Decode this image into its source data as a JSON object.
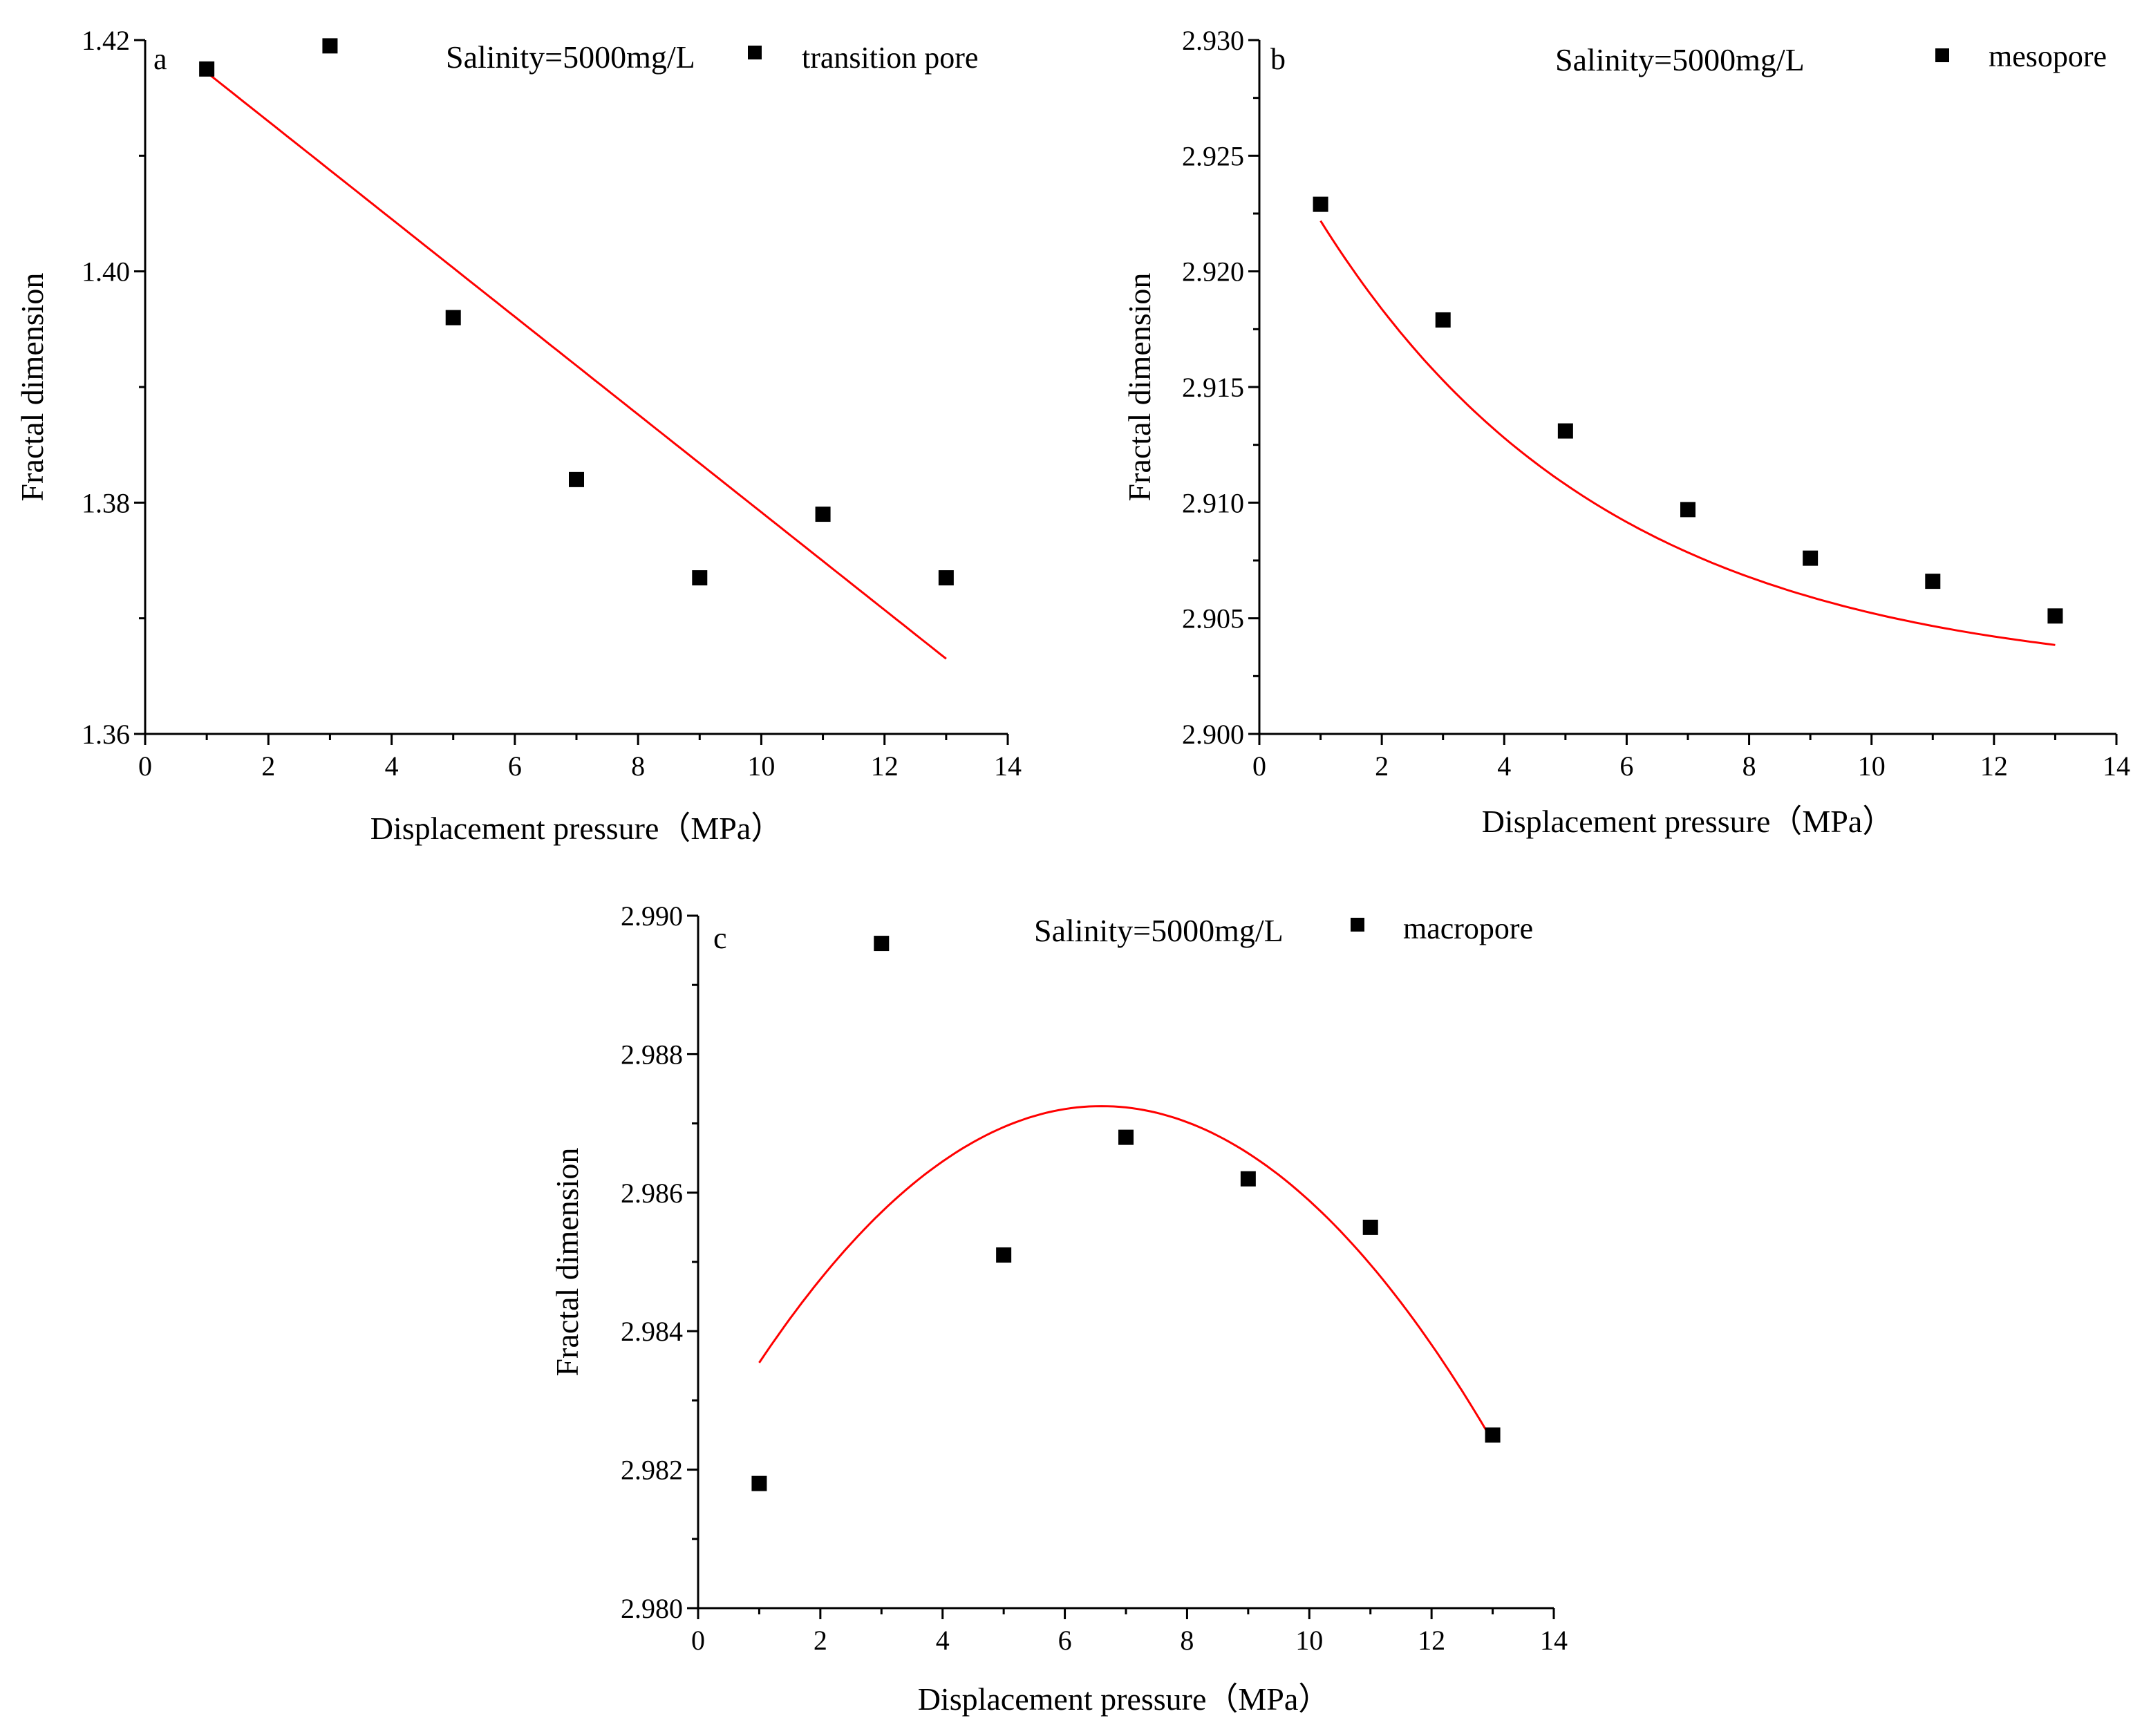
{
  "chart_data": [
    {
      "type": "scatter",
      "panel": "a",
      "salinity_label": "Salinity=5000mg/L",
      "legend_label": "transition pore",
      "xlabel": "Displacement pressure（MPa）",
      "ylabel": "Fractal dimension",
      "xlim": [
        0,
        14
      ],
      "ylim": [
        1.36,
        1.42
      ],
      "xticks": [
        0,
        2,
        4,
        6,
        8,
        10,
        12,
        14
      ],
      "xtick_labels": [
        "0",
        "2",
        "4",
        "6",
        "8",
        "10",
        "12",
        "14"
      ],
      "yticks": [
        1.36,
        1.38,
        1.4,
        1.42
      ],
      "ytick_labels": [
        "1.36",
        "1.38",
        "1.40",
        "1.42"
      ],
      "x": [
        1,
        3,
        5,
        7,
        9,
        11,
        13
      ],
      "y": [
        1.4175,
        1.4195,
        1.396,
        1.382,
        1.3735,
        1.379,
        1.3735
      ],
      "fit": {
        "kind": "linear",
        "x_range": [
          1,
          13
        ],
        "y_start": 1.4172,
        "y_end": 1.3665
      },
      "marker_color": "#000000",
      "fit_color": "#ff0000"
    },
    {
      "type": "scatter",
      "panel": "b",
      "salinity_label": "Salinity=5000mg/L",
      "legend_label": "mesopore",
      "xlabel": "Displacement pressure（MPa）",
      "ylabel": "Fractal dimension",
      "xlim": [
        0,
        14
      ],
      "ylim": [
        2.9,
        2.93
      ],
      "xticks": [
        0,
        2,
        4,
        6,
        8,
        10,
        12,
        14
      ],
      "xtick_labels": [
        "0",
        "2",
        "4",
        "6",
        "8",
        "10",
        "12",
        "14"
      ],
      "yticks": [
        2.9,
        2.905,
        2.91,
        2.915,
        2.92,
        2.925,
        2.93
      ],
      "ytick_labels": [
        "2.900",
        "2.905",
        "2.910",
        "2.915",
        "2.920",
        "2.925",
        "2.930"
      ],
      "x": [
        1,
        3,
        5,
        7,
        9,
        11,
        13
      ],
      "y": [
        2.9229,
        2.9179,
        2.9131,
        2.9097,
        2.9076,
        2.9066,
        2.9051
      ],
      "fit": {
        "kind": "exponential",
        "x_range": [
          1,
          13
        ],
        "y0": 2.9023,
        "a": 0.0246,
        "k": 0.2128
      },
      "marker_color": "#000000",
      "fit_color": "#ff0000"
    },
    {
      "type": "scatter",
      "panel": "c",
      "salinity_label": "Salinity=5000mg/L",
      "legend_label": "macropore",
      "xlabel": "Displacement pressure（MPa）",
      "ylabel": "Fractal dimension",
      "xlim": [
        0,
        14
      ],
      "ylim": [
        2.98,
        2.99
      ],
      "xticks": [
        0,
        2,
        4,
        6,
        8,
        10,
        12,
        14
      ],
      "xtick_labels": [
        "0",
        "2",
        "4",
        "6",
        "8",
        "10",
        "12",
        "14"
      ],
      "yticks": [
        2.98,
        2.982,
        2.984,
        2.986,
        2.988,
        2.99
      ],
      "ytick_labels": [
        "2.980",
        "2.982",
        "2.984",
        "2.986",
        "2.988",
        "2.990"
      ],
      "x": [
        1,
        3,
        5,
        7,
        9,
        11,
        13
      ],
      "y": [
        2.9818,
        2.9896,
        2.9851,
        2.9868,
        2.9862,
        2.9855,
        2.9825
      ],
      "fit": {
        "kind": "quadratic",
        "x_range": [
          1,
          13
        ],
        "vertex_x": 6.6,
        "vertex_y": 2.98725,
        "a": -0.00011817
      },
      "marker_color": "#000000",
      "fit_color": "#ff0000"
    }
  ]
}
